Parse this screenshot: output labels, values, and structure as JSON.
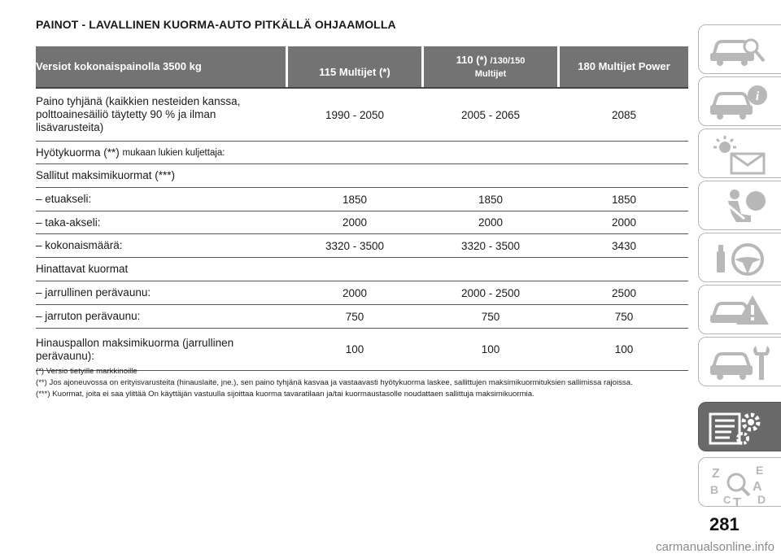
{
  "page": {
    "title": "PAINOT - LAVALLINEN KUORMA-AUTO PITKÄLLÄ OHJAAMOLLA",
    "page_number": "281",
    "watermark": "carmanualsonline.info"
  },
  "table": {
    "headers": {
      "col0": "Versiot kokonaispainolla 3500 kg",
      "col1": "115 Multijet (*)",
      "col2_main": "110 (*)",
      "col2_small": "/130/150",
      "col2_line2": "Multijet",
      "col3": "180 Multijet Power"
    },
    "rows": [
      {
        "label": "Paino tyhjänä (kaikkien nesteiden kanssa, polttoainesäiliö täytetty 90 % ja ilman lisävarusteita)",
        "v1": "1990 - 2050",
        "v2": "2005 - 2065",
        "v3": "2085"
      },
      {
        "label": "Hyötykuorma (**)",
        "label_small": "mukaan lukien kuljettaja:",
        "v1": "",
        "v2": "",
        "v3": ""
      },
      {
        "label": "Sallitut maksimikuormat (***)",
        "v1": "",
        "v2": "",
        "v3": ""
      },
      {
        "label": "– etuakseli:",
        "v1": "1850",
        "v2": "1850",
        "v3": "1850"
      },
      {
        "label": "– taka-akseli:",
        "v1": "2000",
        "v2": "2000",
        "v3": "2000"
      },
      {
        "label": "– kokonaismäärä:",
        "v1": "3320 - 3500",
        "v2": "3320 - 3500",
        "v3": "3430"
      },
      {
        "label": "Hinattavat kuormat",
        "v1": "",
        "v2": "",
        "v3": ""
      },
      {
        "label": "– jarrullinen perävaunu:",
        "v1": "2000",
        "v2": "2000 - 2500",
        "v3": "2500"
      },
      {
        "label": "– jarruton perävaunu:",
        "v1": "750",
        "v2": "750",
        "v3": "750"
      },
      {
        "label": "Hinauspallon maksimikuorma (jarrullinen perävaunu):",
        "v1": "100",
        "v2": "100",
        "v3": "100"
      }
    ]
  },
  "notes": [
    "(*) Versio tietyille markkinoille",
    "(**) Jos ajoneuvossa on erityisvarusteita (hinauslaite, jne.), sen paino tyhjänä kasvaa ja vastaavasti hyötykuorma laskee, sallittujen maksimikuormituksien sallimissa rajoissa.",
    "(***) Kuormat, joita ei saa ylittää On käyttäjän vastuulla sijoittaa kuorma tavaratilaan ja/tai kuormaustasolle noudattaen sallittuja maksimikuormia."
  ],
  "sidebar": {
    "tabs": [
      {
        "icon": "car-search-icon"
      },
      {
        "icon": "car-info-icon"
      },
      {
        "icon": "warning-light-icon"
      },
      {
        "icon": "airbag-seat-icon"
      },
      {
        "icon": "steering-wheel-icon"
      },
      {
        "icon": "car-emergency-icon"
      },
      {
        "icon": "car-wrench-icon"
      },
      {
        "icon": "technical-data-icon",
        "active": true
      },
      {
        "icon": "alphabetical-index-icon"
      }
    ],
    "index_letters": [
      "Z",
      "E",
      "B",
      "A",
      "C",
      "T",
      "D"
    ]
  },
  "colors": {
    "header_bg": "#737373",
    "active_tab": "#6a6a6a",
    "icon_gray": "#b8b8b8"
  }
}
